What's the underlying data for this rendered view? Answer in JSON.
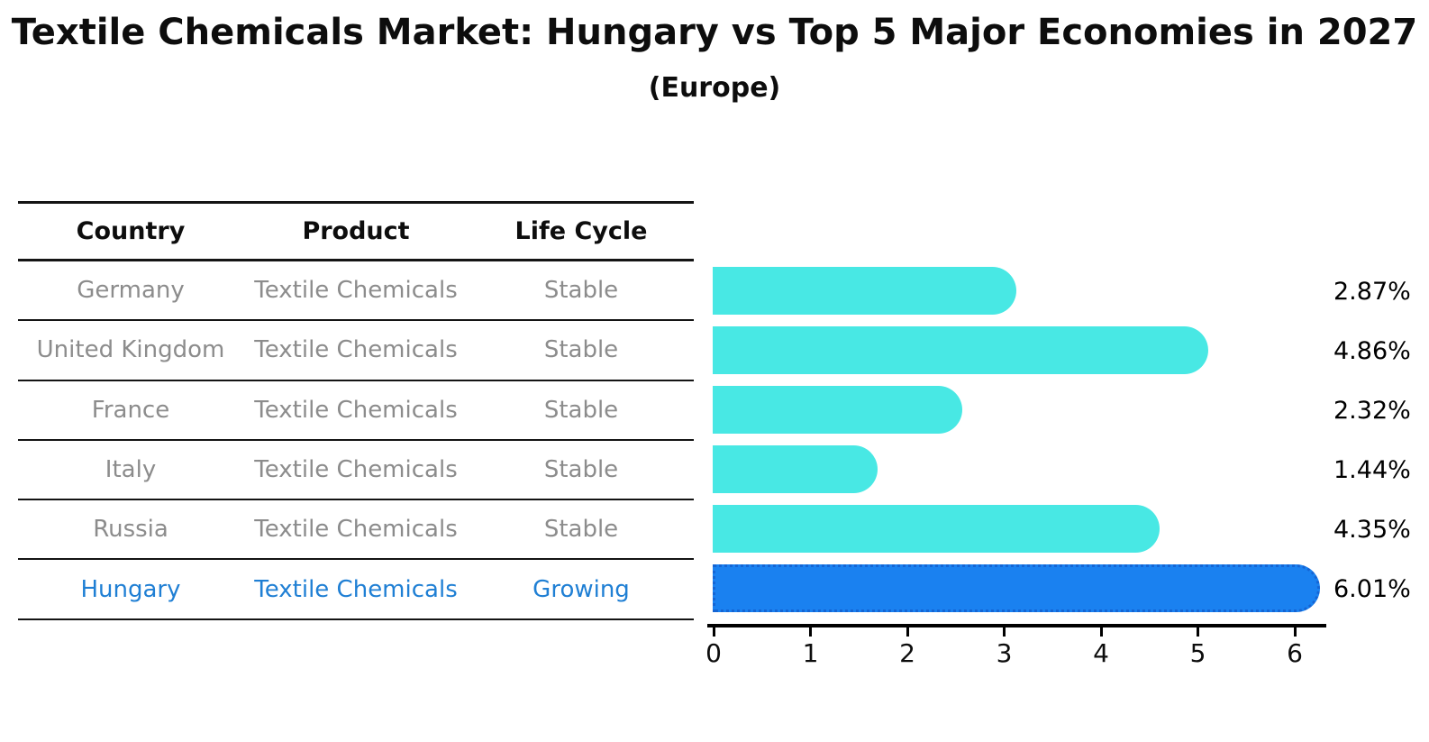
{
  "header": {
    "title": "Textile Chemicals Market: Hungary vs Top 5 Major Economies in 2027",
    "subtitle": "(Europe)"
  },
  "table": {
    "columns": [
      "Country",
      "Product",
      "Life Cycle"
    ],
    "rows": [
      {
        "cells": [
          "Germany",
          "Textile Chemicals",
          "Stable"
        ],
        "highlight": false
      },
      {
        "cells": [
          "United Kingdom",
          "Textile Chemicals",
          "Stable"
        ],
        "highlight": false
      },
      {
        "cells": [
          "France",
          "Textile Chemicals",
          "Stable"
        ],
        "highlight": false
      },
      {
        "cells": [
          "Italy",
          "Textile Chemicals",
          "Stable"
        ],
        "highlight": false
      },
      {
        "cells": [
          "Russia",
          "Textile Chemicals",
          "Stable"
        ],
        "highlight": false
      },
      {
        "cells": [
          "Hungary",
          "Textile Chemicals",
          "Growing"
        ],
        "highlight": true
      }
    ]
  },
  "chart_data": {
    "type": "bar",
    "orientation": "horizontal",
    "title": "Textile Chemicals Market: Hungary vs Top 5 Major Economies in 2027",
    "subtitle": "(Europe)",
    "categories": [
      "Germany",
      "United Kingdom",
      "France",
      "Italy",
      "Russia",
      "Hungary"
    ],
    "values": [
      2.87,
      4.86,
      2.32,
      1.44,
      4.35,
      6.01
    ],
    "value_labels": [
      "2.87%",
      "4.86%",
      "2.32%",
      "1.44%",
      "4.35%",
      "6.01%"
    ],
    "unit": "%",
    "highlight_category": "Hungary",
    "x_ticks": [
      0,
      1,
      2,
      3,
      4,
      5,
      6
    ],
    "xlim": [
      0,
      6.33
    ],
    "grid": false,
    "legend": false,
    "bar_color": "#48E8E4",
    "highlight_bar_color": "#1A81F0",
    "highlight_border_color": "#1565D4",
    "value_label_color": "#000000"
  },
  "colors": {
    "row_text": "#8C8C8C",
    "highlight_text": "#1F7FD4",
    "header_text": "#0D0D0D",
    "line": "#141414"
  }
}
